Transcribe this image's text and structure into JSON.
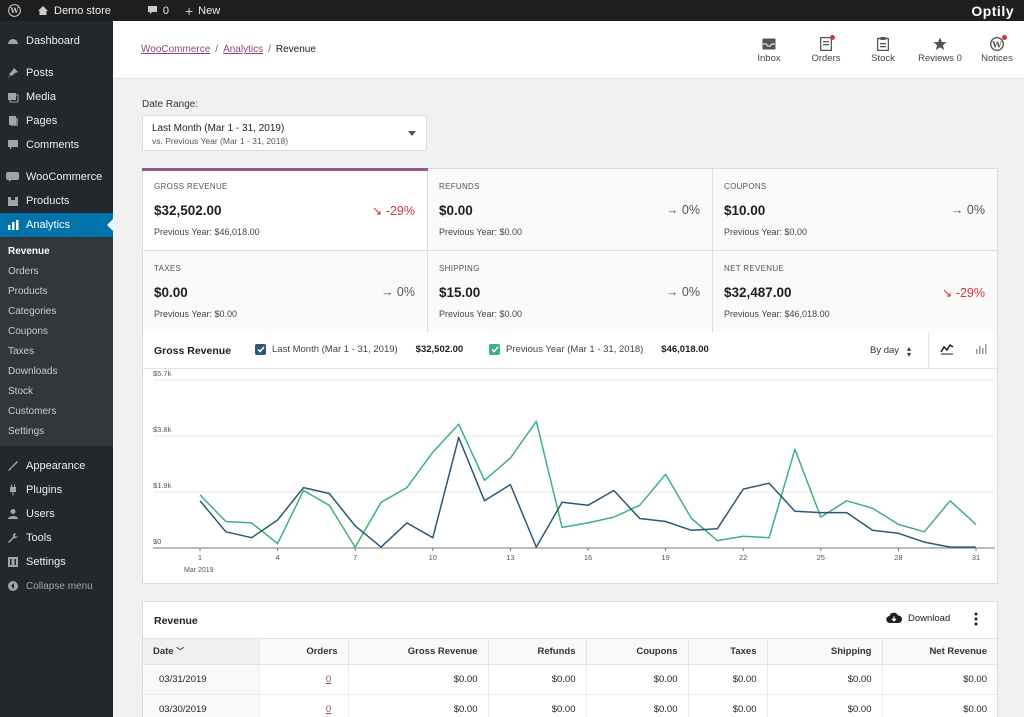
{
  "adminbar": {
    "site": "Demo store",
    "comments_count": "0",
    "new_label": "New",
    "brand": "Optily"
  },
  "sidebar": {
    "items_top": [
      {
        "label": "Dashboard",
        "icon": "dashboard-icon"
      },
      {
        "label": "Posts",
        "icon": "pin-icon"
      },
      {
        "label": "Media",
        "icon": "media-icon"
      },
      {
        "label": "Pages",
        "icon": "pages-icon"
      },
      {
        "label": "Comments",
        "icon": "comment-icon"
      },
      {
        "label": "WooCommerce",
        "icon": "woo-icon"
      },
      {
        "label": "Products",
        "icon": "box-icon"
      },
      {
        "label": "Analytics",
        "icon": "bar-chart-icon"
      }
    ],
    "submenu": [
      "Revenue",
      "Orders",
      "Products",
      "Categories",
      "Coupons",
      "Taxes",
      "Downloads",
      "Stock",
      "Customers",
      "Settings"
    ],
    "items_bottom": [
      {
        "label": "Appearance",
        "icon": "brush-icon"
      },
      {
        "label": "Plugins",
        "icon": "plugin-icon"
      },
      {
        "label": "Users",
        "icon": "user-icon"
      },
      {
        "label": "Tools",
        "icon": "wrench-icon"
      },
      {
        "label": "Settings",
        "icon": "settings-icon"
      },
      {
        "label": "Collapse menu",
        "icon": "collapse-icon"
      }
    ]
  },
  "header": {
    "breadcrumb": [
      "WooCommerce",
      "Analytics",
      "Revenue"
    ],
    "buttons": [
      "Inbox",
      "Orders",
      "Stock",
      "Reviews 0",
      "Notices"
    ]
  },
  "date_range": {
    "label": "Date Range:",
    "primary": "Last Month (Mar 1 - 31, 2019)",
    "secondary": "vs. Previous Year (Mar 1 - 31, 2018)"
  },
  "summary": [
    {
      "label": "GROSS REVENUE",
      "value": "$32,502.00",
      "delta": "-29%",
      "prev": "Previous Year: $46,018.00"
    },
    {
      "label": "REFUNDS",
      "value": "$0.00",
      "delta": "0%",
      "prev": "Previous Year: $0.00"
    },
    {
      "label": "COUPONS",
      "value": "$10.00",
      "delta": "0%",
      "prev": "Previous Year: $0.00"
    },
    {
      "label": "TAXES",
      "value": "$0.00",
      "delta": "0%",
      "prev": "Previous Year: $0.00"
    },
    {
      "label": "SHIPPING",
      "value": "$15.00",
      "delta": "0%",
      "prev": "Previous Year: $0.00"
    },
    {
      "label": "NET REVENUE",
      "value": "$32,487.00",
      "delta": "-29%",
      "prev": "Previous Year: $46,018.00"
    }
  ],
  "chart_header": {
    "title": "Gross Revenue",
    "legend1": "Last Month (Mar 1 - 31, 2019)",
    "total1": "$32,502.00",
    "legend2": "Previous Year (Mar 1 - 31, 2018)",
    "total2": "$46,018.00",
    "interval": "By day"
  },
  "colors": {
    "current": "#2c5878",
    "previous": "#40b07e",
    "accent": "#95588a"
  },
  "chart_data": {
    "type": "line",
    "x": [
      1,
      2,
      3,
      4,
      5,
      6,
      7,
      8,
      9,
      10,
      11,
      12,
      13,
      14,
      15,
      16,
      17,
      18,
      19,
      20,
      21,
      22,
      23,
      24,
      25,
      26,
      27,
      28,
      29,
      30,
      31
    ],
    "xticks": [
      "1",
      "4",
      "7",
      "10",
      "13",
      "16",
      "19",
      "22",
      "25",
      "28",
      "31"
    ],
    "xtick_values": [
      1,
      4,
      7,
      10,
      13,
      16,
      19,
      22,
      25,
      28,
      31
    ],
    "x_sublabel": "Mar 2019",
    "yticks": [
      "$0",
      "$1.9k",
      "$3.8k",
      "$5.7k"
    ],
    "ytick_values": [
      0,
      1900,
      3800,
      5700
    ],
    "ylim": [
      0,
      5700
    ],
    "series": [
      {
        "name": "Last Month (Mar 1 - 31, 2019)",
        "values": [
          1600,
          550,
          350,
          950,
          2050,
          1850,
          750,
          30,
          850,
          350,
          3750,
          1600,
          2150,
          30,
          1550,
          1450,
          1950,
          1000,
          900,
          600,
          650,
          2000,
          2200,
          1250,
          1200,
          1200,
          600,
          500,
          200,
          30,
          30
        ]
      },
      {
        "name": "Previous Year (Mar 1 - 31, 2018)",
        "values": [
          1800,
          900,
          850,
          150,
          1950,
          1450,
          30,
          1550,
          2050,
          3250,
          4200,
          2300,
          3050,
          4300,
          700,
          850,
          1050,
          1450,
          2500,
          1000,
          250,
          400,
          350,
          3350,
          1050,
          1600,
          1350,
          800,
          550,
          1600,
          800
        ]
      }
    ]
  },
  "table": {
    "title": "Revenue",
    "download": "Download",
    "columns": [
      "Date",
      "Orders",
      "Gross Revenue",
      "Refunds",
      "Coupons",
      "Taxes",
      "Shipping",
      "Net Revenue"
    ],
    "rows": [
      [
        "03/31/2019",
        "0",
        "$0.00",
        "$0.00",
        "$0.00",
        "$0.00",
        "$0.00",
        "$0.00"
      ],
      [
        "03/30/2019",
        "0",
        "$0.00",
        "$0.00",
        "$0.00",
        "$0.00",
        "$0.00",
        "$0.00"
      ]
    ]
  }
}
